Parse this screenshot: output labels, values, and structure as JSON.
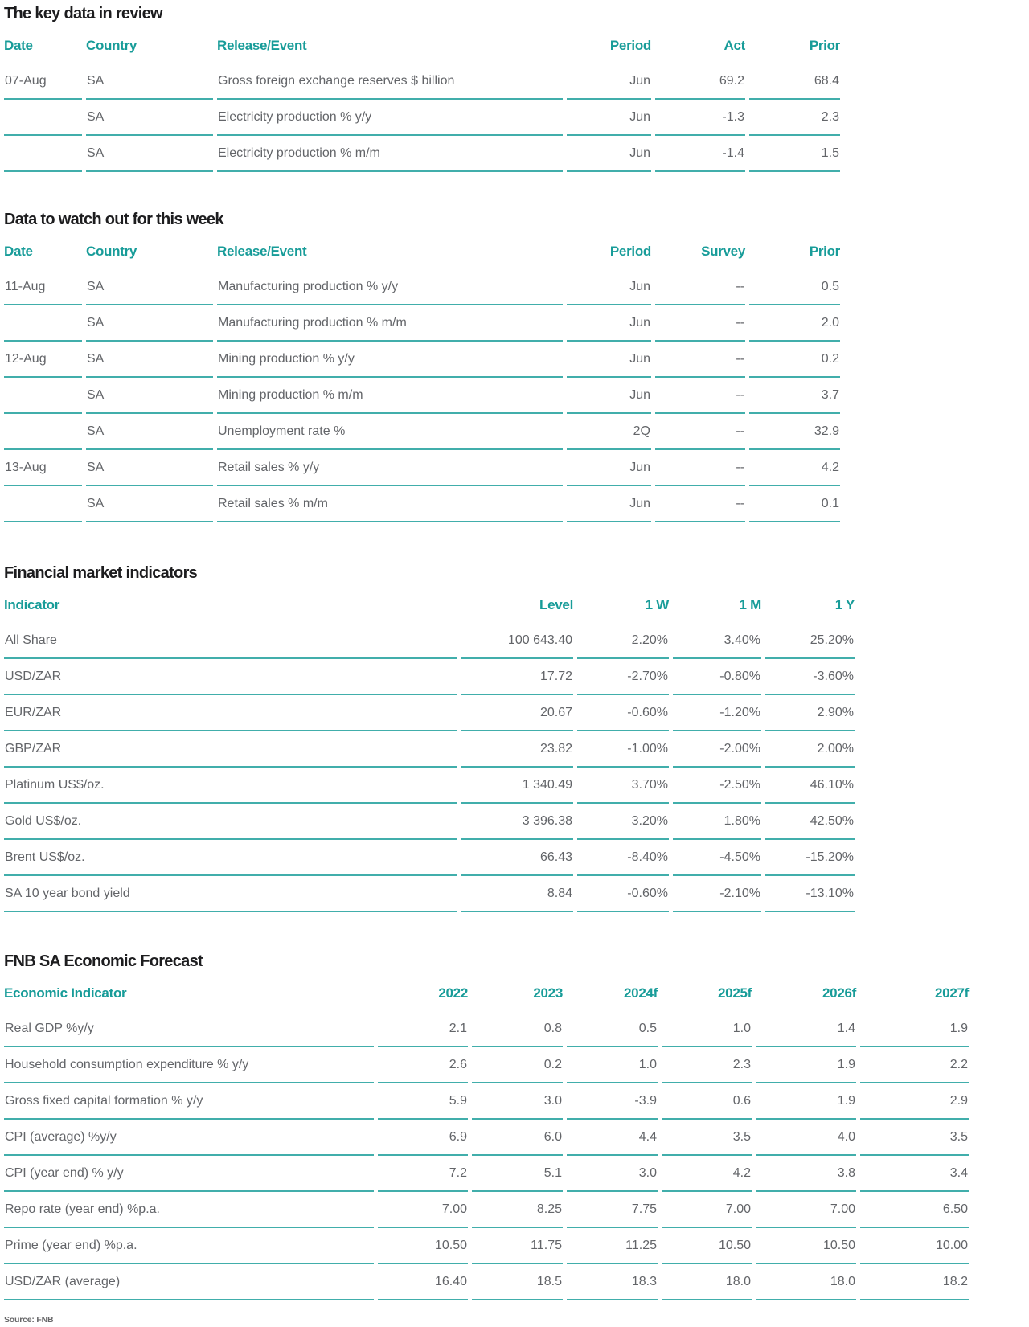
{
  "colors": {
    "accent": "#189c99",
    "divider_line": "#41aeab",
    "title_text": "#1d1d1f",
    "body_text": "#636569"
  },
  "source_note": "Source: FNB",
  "sections": [
    {
      "title": "The key data in review",
      "columns": [
        "Date",
        "Country",
        "Release/Event",
        "Period",
        "Act",
        "Prior"
      ],
      "rows": [
        [
          "07-Aug",
          "SA",
          "Gross foreign exchange reserves $ billion",
          "Jun",
          "69.2",
          "68.4"
        ],
        [
          "",
          "SA",
          "Electricity production % y/y",
          "Jun",
          "-1.3",
          "2.3"
        ],
        [
          "",
          "SA",
          "Electricity production % m/m",
          "Jun",
          "-1.4",
          "1.5"
        ]
      ]
    },
    {
      "title": "Data to watch out for this week",
      "columns": [
        "Date",
        "Country",
        "Release/Event",
        "Period",
        "Survey",
        "Prior"
      ],
      "rows": [
        [
          "11-Aug",
          "SA",
          "Manufacturing production % y/y",
          "Jun",
          "--",
          "0.5"
        ],
        [
          "",
          "SA",
          "Manufacturing production % m/m",
          "Jun",
          "--",
          "2.0"
        ],
        [
          "12-Aug",
          "SA",
          "Mining production % y/y",
          "Jun",
          "--",
          "0.2"
        ],
        [
          "",
          "SA",
          "Mining production % m/m",
          "Jun",
          "--",
          "3.7"
        ],
        [
          "",
          "SA",
          "Unemployment rate %",
          "2Q",
          "--",
          "32.9"
        ],
        [
          "13-Aug",
          "SA",
          "Retail sales % y/y",
          "Jun",
          "--",
          "4.2"
        ],
        [
          "",
          "SA",
          "Retail sales % m/m",
          "Jun",
          "--",
          "0.1"
        ]
      ]
    },
    {
      "title": "Financial market indicators",
      "columns": [
        "Indicator",
        "Level",
        "1 W",
        "1 M",
        "1 Y"
      ],
      "rows": [
        [
          "All Share",
          "100 643.40",
          "2.20%",
          "3.40%",
          "25.20%"
        ],
        [
          "USD/ZAR",
          "17.72",
          "-2.70%",
          "-0.80%",
          "-3.60%"
        ],
        [
          "EUR/ZAR",
          "20.67",
          "-0.60%",
          "-1.20%",
          "2.90%"
        ],
        [
          "GBP/ZAR",
          "23.82",
          "-1.00%",
          "-2.00%",
          "2.00%"
        ],
        [
          "Platinum US$/oz.",
          "1 340.49",
          "3.70%",
          "-2.50%",
          "46.10%"
        ],
        [
          "Gold US$/oz.",
          "3 396.38",
          "3.20%",
          "1.80%",
          "42.50%"
        ],
        [
          "Brent US$/oz.",
          "66.43",
          "-8.40%",
          "-4.50%",
          "-15.20%"
        ],
        [
          "SA 10 year bond yield",
          "8.84",
          "-0.60%",
          "-2.10%",
          "-13.10%"
        ]
      ]
    },
    {
      "title": "FNB SA Economic Forecast",
      "columns": [
        "Economic Indicator",
        "2022",
        "2023",
        "2024f",
        "2025f",
        "2026f",
        "2027f"
      ],
      "rows": [
        [
          "Real GDP %y/y",
          "2.1",
          "0.8",
          "0.5",
          "1.0",
          "1.4",
          "1.9"
        ],
        [
          "Household consumption expenditure % y/y",
          "2.6",
          "0.2",
          "1.0",
          "2.3",
          "1.9",
          "2.2"
        ],
        [
          "Gross fixed capital formation % y/y",
          "5.9",
          "3.0",
          "-3.9",
          "0.6",
          "1.9",
          "2.9"
        ],
        [
          "CPI (average) %y/y",
          "6.9",
          "6.0",
          "4.4",
          "3.5",
          "4.0",
          "3.5"
        ],
        [
          "CPI (year end) % y/y",
          "7.2",
          "5.1",
          "3.0",
          "4.2",
          "3.8",
          "3.4"
        ],
        [
          "Repo rate (year end) %p.a.",
          "7.00",
          "8.25",
          "7.75",
          "7.00",
          "7.00",
          "6.50"
        ],
        [
          "Prime (year end) %p.a.",
          "10.50",
          "11.75",
          "11.25",
          "10.50",
          "10.50",
          "10.00"
        ],
        [
          "USD/ZAR (average)",
          "16.40",
          "18.5",
          "18.3",
          "18.0",
          "18.0",
          "18.2"
        ]
      ]
    }
  ]
}
